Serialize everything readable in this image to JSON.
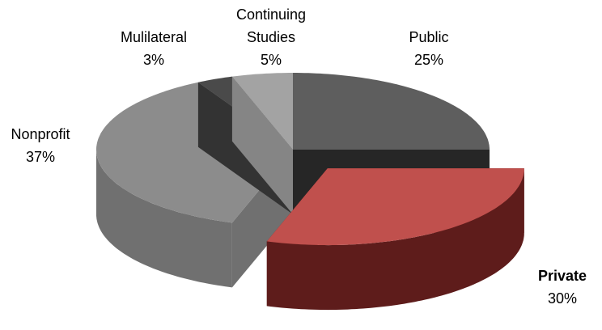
{
  "chart_data": {
    "type": "pie3d",
    "categories": [
      "Public",
      "Private",
      "Nonprofit",
      "Mulilateral",
      "Continuing Studies"
    ],
    "values": [
      25,
      30,
      37,
      3,
      5
    ],
    "value_labels": [
      "25%",
      "30%",
      "37%",
      "3%",
      "5%"
    ],
    "colors": [
      "#5e5e5e",
      "#c0504d",
      "#8c8c8c",
      "#4a4a4a",
      "#a3a3a3"
    ],
    "side_colors": [
      "#262626",
      "#5e1c1b",
      "#707070",
      "#333333",
      "#858585"
    ],
    "exploded": [
      false,
      true,
      false,
      false,
      false
    ]
  }
}
